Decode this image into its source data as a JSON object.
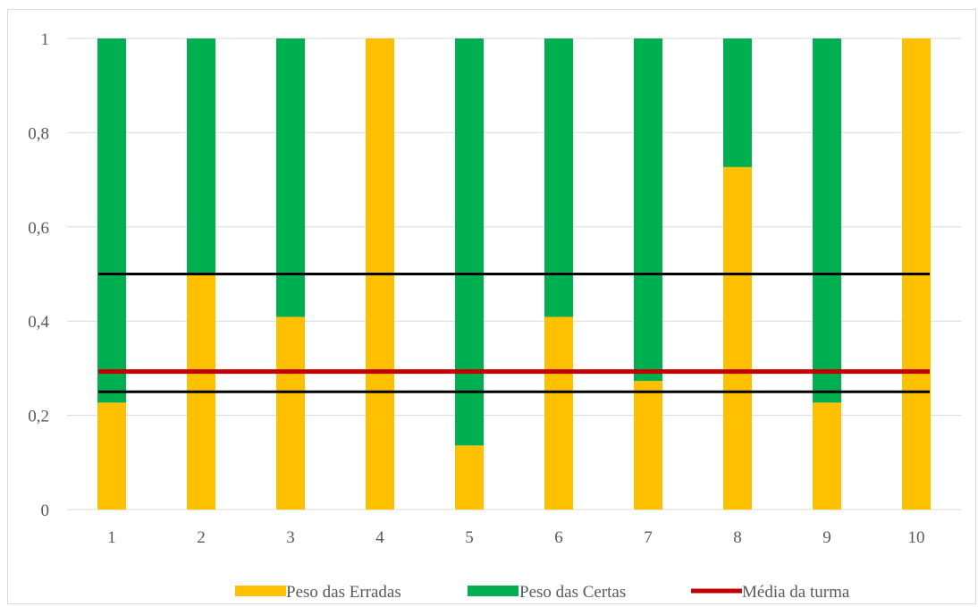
{
  "chart_data": {
    "type": "bar",
    "stacked": true,
    "categories": [
      "1",
      "2",
      "3",
      "4",
      "5",
      "6",
      "7",
      "8",
      "9",
      "10"
    ],
    "series": [
      {
        "name": "Peso das Erradas",
        "color": "#FFC000",
        "values": [
          0.227,
          0.5,
          0.409,
          1.0,
          0.136,
          0.409,
          0.273,
          0.727,
          0.227,
          1.0
        ]
      },
      {
        "name": "Peso das Certas",
        "color": "#00B050",
        "values": [
          0.773,
          0.5,
          0.591,
          0.0,
          0.864,
          0.591,
          0.727,
          0.273,
          0.773,
          0.0
        ]
      }
    ],
    "reference_lines": [
      {
        "name": "Média da turma",
        "value": 0.293,
        "color": "#C00000"
      },
      {
        "value": 0.5,
        "color": "#000000"
      },
      {
        "value": 0.25,
        "color": "#000000"
      }
    ],
    "yticks": [
      "0",
      "0,2",
      "0,4",
      "0,6",
      "0,8",
      "1"
    ],
    "ylim": [
      0,
      1
    ],
    "grid": true,
    "legend_position": "bottom"
  }
}
